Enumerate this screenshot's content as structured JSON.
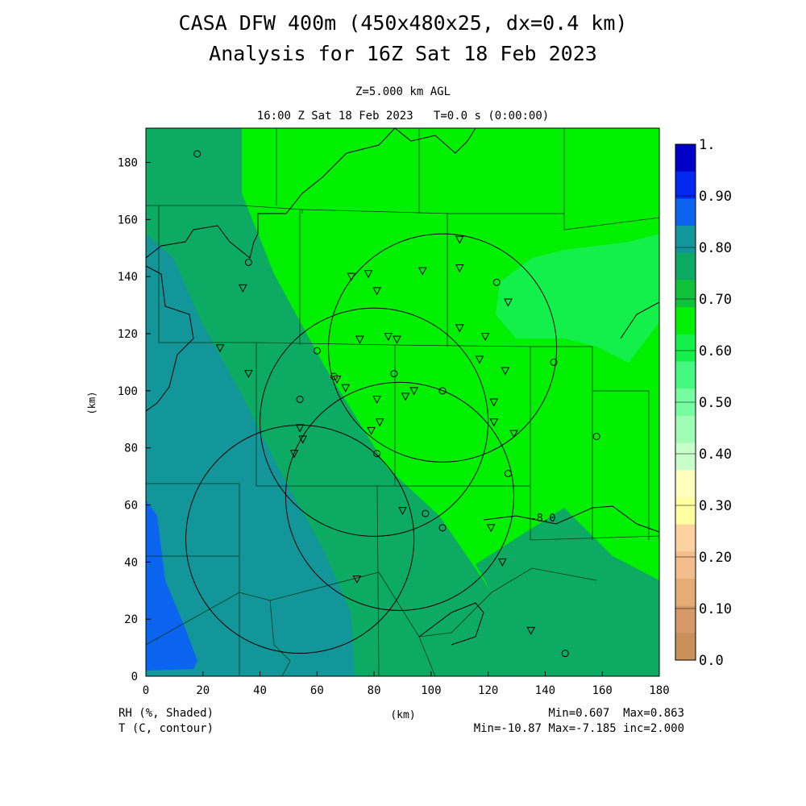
{
  "title": {
    "line1": "CASA DFW 400m (450x480x25, dx=0.4 km)",
    "line2": "Analysis for 16Z Sat 18 Feb 2023"
  },
  "subtitle": {
    "level": "Z=5.000 km AGL",
    "time": "16:00 Z Sat 18 Feb 2023   T=0.0 s (0:00:00)"
  },
  "axes": {
    "x_label": "(km)",
    "y_label": "(km)",
    "x_ticks": [
      "0",
      "20",
      "40",
      "60",
      "80",
      "100",
      "120",
      "140",
      "160",
      "180"
    ],
    "y_ticks": [
      "0",
      "20",
      "40",
      "60",
      "80",
      "100",
      "120",
      "140",
      "160",
      "180"
    ],
    "x_range": [
      0,
      180
    ],
    "y_range": [
      0,
      192
    ]
  },
  "colorbar": {
    "labels": [
      "1.",
      "0.90",
      "0.80",
      "0.70",
      "0.60",
      "0.50",
      "0.40",
      "0.30",
      "0.20",
      "0.10",
      "0.0"
    ],
    "colors": [
      "#0000c8",
      "#0028f0",
      "#0a64f0",
      "#12969a",
      "#0caa62",
      "#10c23a",
      "#00f000",
      "#14f04a",
      "#46f882",
      "#78fca0",
      "#a0feb4",
      "#c8fec8",
      "#fefebe",
      "#fefe9e",
      "#fed2a0",
      "#f4be8c",
      "#e6ac78",
      "#d69a68",
      "#c8905a"
    ]
  },
  "footer": {
    "left1": "RH (%, Shaded)",
    "left2": "T (C, contour)",
    "center": "(km)",
    "right1": "Min=0.607  Max=0.863",
    "right2": "Min=-10.87 Max=-7.185 inc=2.000"
  },
  "contour_label": "-8.0",
  "chart_data": {
    "type": "heatmap",
    "field": "RH",
    "units": "fraction",
    "min": 0.607,
    "max": 0.863,
    "contour_field": "T",
    "contour_units": "C",
    "contour_min": -10.87,
    "contour_max": -7.185,
    "contour_inc": 2.0,
    "radar_rings_center_km": [
      [
        54,
        48
      ],
      [
        80,
        89
      ],
      [
        104,
        115
      ],
      [
        89,
        63
      ]
    ],
    "radar_ring_radius_km": 40,
    "stations_triangle_km": [
      [
        26,
        115
      ],
      [
        34,
        136
      ],
      [
        36,
        106
      ],
      [
        54,
        87
      ],
      [
        55,
        83
      ],
      [
        52,
        78
      ],
      [
        67,
        104
      ],
      [
        70,
        101
      ],
      [
        72,
        140
      ],
      [
        75,
        118
      ],
      [
        78,
        141
      ],
      [
        79,
        86
      ],
      [
        81,
        97
      ],
      [
        82,
        89
      ],
      [
        81,
        135
      ],
      [
        85,
        119
      ],
      [
        88,
        118
      ],
      [
        91,
        98
      ],
      [
        94,
        100
      ],
      [
        90,
        58
      ],
      [
        97,
        142
      ],
      [
        110,
        143
      ],
      [
        110,
        153
      ],
      [
        110,
        122
      ],
      [
        117,
        111
      ],
      [
        119,
        119
      ],
      [
        122,
        96
      ],
      [
        122,
        89
      ],
      [
        121,
        52
      ],
      [
        125,
        40
      ],
      [
        126,
        107
      ],
      [
        127,
        131
      ],
      [
        129,
        85
      ],
      [
        135,
        16
      ],
      [
        74,
        34
      ]
    ],
    "stations_circle_km": [
      [
        18,
        183
      ],
      [
        36,
        145
      ],
      [
        54,
        97
      ],
      [
        60,
        114
      ],
      [
        66,
        105
      ],
      [
        81,
        78
      ],
      [
        87,
        106
      ],
      [
        98,
        57
      ],
      [
        104,
        52
      ],
      [
        104,
        100
      ],
      [
        123,
        138
      ],
      [
        143,
        110
      ],
      [
        158,
        84
      ],
      [
        147,
        8
      ],
      [
        127,
        71
      ]
    ]
  }
}
